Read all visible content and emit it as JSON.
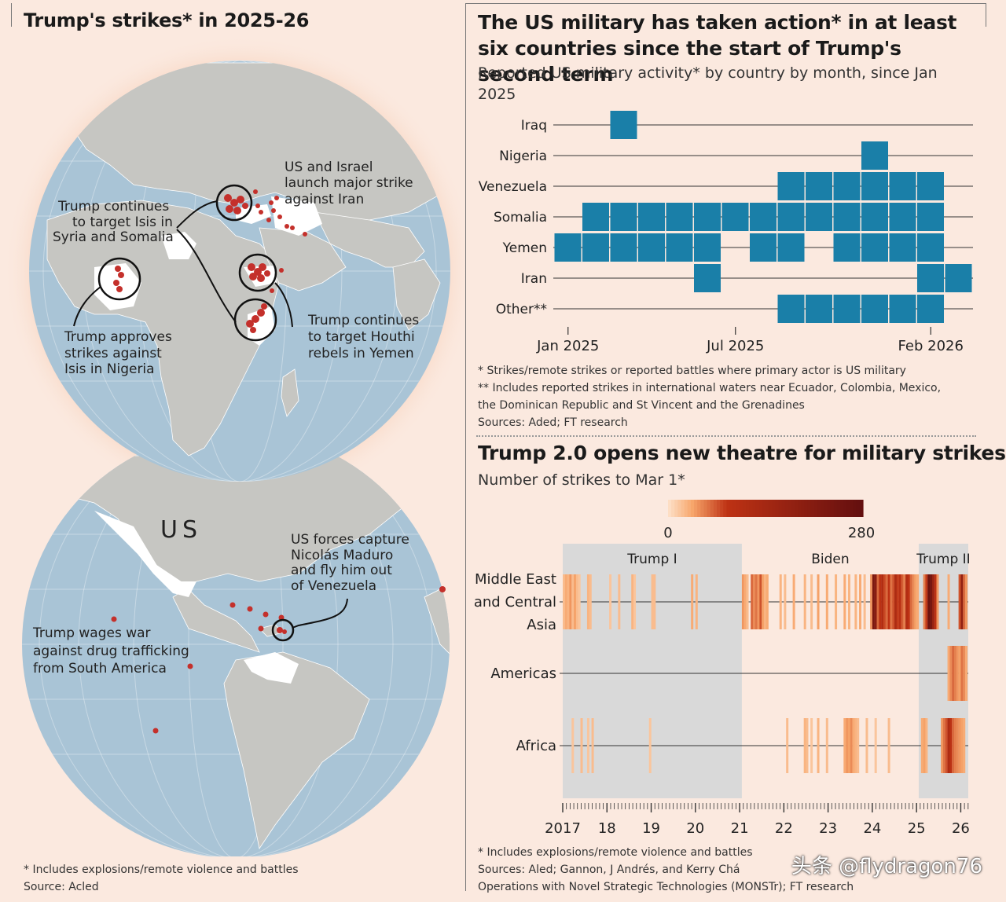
{
  "left": {
    "title": "Trump's strikes* in 2025-26",
    "annotations": {
      "isis_syria_1": "Trump continues",
      "isis_syria_2": "to target Isis in",
      "isis_syria_3": "Syria and Somalia",
      "iran_1": "US and Israel",
      "iran_2": "launch major strike",
      "iran_3": "against Iran",
      "nigeria_1": "Trump approves",
      "nigeria_2": "strikes against",
      "nigeria_3": "Isis in Nigeria",
      "houthi_1": "Trump continues",
      "houthi_2": "to target Houthi",
      "houthi_3": "rebels in Yemen",
      "us_label": "US",
      "maduro_1": "US forces capture",
      "maduro_2": "Nicolás Maduro",
      "maduro_3": "and fly him out",
      "maduro_4": "of Venezuela",
      "drug_1": "Trump wages war",
      "drug_2": "against drug trafficking",
      "drug_3": "from South America"
    },
    "footnote": "* Includes explosions/remote violence and battles",
    "source": "Source: Acled"
  },
  "top_right": {
    "title": "The US military has taken action* in at least six countries since the start of Trump's second term",
    "subtitle": "Reported US military activity* by country by month, since Jan 2025",
    "footnote1": "* Strikes/remote strikes or reported battles where primary actor is US military",
    "footnote2": "** Includes reported strikes in international waters near Ecuador, Colombia, Mexico,",
    "footnote3": "the Dominican Republic and St Vincent and the Grenadines",
    "source": "Sources: Aded; FT research"
  },
  "bottom_right": {
    "title": "Trump 2.0 opens new theatre for military strikes",
    "subtitle": "Number of strikes to Mar 1*",
    "footnote1": "* Includes explosions/remote violence and battles",
    "footnote2": "Sources: Aled; Gannon, J Andrés, and Kerry Chá",
    "footnote3": "Operations with Novel Strategic Technologies (MONSTr); FT research"
  },
  "watermark": "头条 @flydragon76",
  "colors": {
    "background": "#fbe9df",
    "ocean": "#a9c4d6",
    "land": "#c6c6c2",
    "highlight_land": "#ffffff",
    "strike_dot": "#c4302b",
    "bar_blue": "#1a7fa8",
    "era_shade": "#d9d9d9",
    "heat_low": "#fcd9bd",
    "heat_high": "#6b1010"
  },
  "chart_data": [
    {
      "type": "heatmap",
      "title": "The US military has taken action* in at least six countries since the start of Trump's second term",
      "subtitle": "Reported US military activity* by country by month, since Jan 2025",
      "months": [
        "Jan 2025",
        "Feb 2025",
        "Mar 2025",
        "Apr 2025",
        "May 2025",
        "Jun 2025",
        "Jul 2025",
        "Aug 2025",
        "Sep 2025",
        "Oct 2025",
        "Nov 2025",
        "Dec 2025",
        "Jan 2026",
        "Feb 2026",
        "Mar 2026"
      ],
      "x_tick_labels": [
        {
          "label": "Jan 2025",
          "month_index": 0.5
        },
        {
          "label": "Jul 2025",
          "month_index": 6.5
        },
        {
          "label": "Feb 2026",
          "month_index": 13.5
        }
      ],
      "rows": [
        {
          "name": "Iraq",
          "active": [
            0,
            0,
            1,
            0,
            0,
            0,
            0,
            0,
            0,
            0,
            0,
            0,
            0,
            0,
            0
          ]
        },
        {
          "name": "Nigeria",
          "active": [
            0,
            0,
            0,
            0,
            0,
            0,
            0,
            0,
            0,
            0,
            0,
            1,
            0,
            0,
            0
          ]
        },
        {
          "name": "Venezuela",
          "active": [
            0,
            0,
            0,
            0,
            0,
            0,
            0,
            0,
            1,
            1,
            1,
            1,
            1,
            1,
            0
          ]
        },
        {
          "name": "Somalia",
          "active": [
            0,
            1,
            1,
            1,
            1,
            1,
            1,
            1,
            1,
            1,
            1,
            1,
            1,
            1,
            0
          ]
        },
        {
          "name": "Yemen",
          "active": [
            1,
            1,
            1,
            1,
            1,
            1,
            0,
            1,
            1,
            0,
            1,
            1,
            1,
            1,
            0
          ]
        },
        {
          "name": "Iran",
          "active": [
            0,
            0,
            0,
            0,
            0,
            1,
            0,
            0,
            0,
            0,
            0,
            0,
            0,
            1,
            1
          ]
        },
        {
          "name": "Other**",
          "active": [
            0,
            0,
            0,
            0,
            0,
            0,
            0,
            0,
            1,
            1,
            1,
            1,
            1,
            1,
            0
          ]
        }
      ]
    },
    {
      "type": "heatmap",
      "title": "Trump 2.0 opens new theatre for military strikes",
      "subtitle": "Number of strikes to Mar 1*",
      "colorbar": {
        "min": 0,
        "max": 280,
        "min_label": "0",
        "max_label": "280"
      },
      "x_range": [
        2017,
        2026.17
      ],
      "x_tick_labels": [
        "2017",
        "18",
        "19",
        "20",
        "21",
        "22",
        "23",
        "24",
        "25",
        "26"
      ],
      "eras": [
        {
          "label": "Trump I",
          "start": 2017.0,
          "end": 2021.05
        },
        {
          "label": "Biden",
          "start": 2021.05,
          "end": 2025.05
        },
        {
          "label": "Trump II",
          "start": 2025.05,
          "end": 2026.17
        }
      ],
      "regions": [
        {
          "name": "Middle East and Central Asia",
          "label_lines": [
            "Middle East",
            "and Central",
            "Asia"
          ],
          "events": [
            [
              2017.0,
              20
            ],
            [
              2017.05,
              30
            ],
            [
              2017.1,
              25
            ],
            [
              2017.15,
              40
            ],
            [
              2017.2,
              20
            ],
            [
              2017.25,
              35
            ],
            [
              2017.3,
              20
            ],
            [
              2017.35,
              15
            ],
            [
              2017.55,
              25
            ],
            [
              2017.6,
              20
            ],
            [
              2018.05,
              15
            ],
            [
              2018.25,
              20
            ],
            [
              2018.55,
              25
            ],
            [
              2018.6,
              15
            ],
            [
              2019.0,
              20
            ],
            [
              2019.05,
              20
            ],
            [
              2019.9,
              30
            ],
            [
              2020.0,
              25
            ],
            [
              2021.05,
              40
            ],
            [
              2021.1,
              30
            ],
            [
              2021.15,
              20
            ],
            [
              2021.25,
              60
            ],
            [
              2021.3,
              45
            ],
            [
              2021.35,
              55
            ],
            [
              2021.4,
              40
            ],
            [
              2021.45,
              70
            ],
            [
              2021.5,
              35
            ],
            [
              2021.55,
              25
            ],
            [
              2021.6,
              30
            ],
            [
              2021.9,
              25
            ],
            [
              2022.0,
              20
            ],
            [
              2022.2,
              30
            ],
            [
              2022.45,
              25
            ],
            [
              2022.6,
              20
            ],
            [
              2022.75,
              35
            ],
            [
              2022.95,
              30
            ],
            [
              2023.15,
              25
            ],
            [
              2023.35,
              30
            ],
            [
              2023.45,
              25
            ],
            [
              2023.6,
              25
            ],
            [
              2023.7,
              30
            ],
            [
              2023.8,
              20
            ],
            [
              2023.95,
              40
            ],
            [
              2024.0,
              230
            ],
            [
              2024.05,
              200
            ],
            [
              2024.1,
              60
            ],
            [
              2024.15,
              90
            ],
            [
              2024.2,
              110
            ],
            [
              2024.25,
              75
            ],
            [
              2024.3,
              60
            ],
            [
              2024.35,
              85
            ],
            [
              2024.4,
              55
            ],
            [
              2024.45,
              70
            ],
            [
              2024.5,
              120
            ],
            [
              2024.55,
              80
            ],
            [
              2024.6,
              95
            ],
            [
              2024.65,
              65
            ],
            [
              2024.7,
              50
            ],
            [
              2024.75,
              110
            ],
            [
              2024.8,
              85
            ],
            [
              2024.85,
              60
            ],
            [
              2024.9,
              45
            ],
            [
              2024.95,
              35
            ],
            [
              2025.0,
              30
            ],
            [
              2025.15,
              50
            ],
            [
              2025.2,
              80
            ],
            [
              2025.25,
              260
            ],
            [
              2025.3,
              240
            ],
            [
              2025.35,
              170
            ],
            [
              2025.4,
              90
            ],
            [
              2025.45,
              40
            ],
            [
              2025.7,
              30
            ],
            [
              2025.95,
              70
            ],
            [
              2026.0,
              180
            ],
            [
              2026.05,
              60
            ],
            [
              2026.1,
              40
            ]
          ]
        },
        {
          "name": "Americas",
          "label_lines": [
            "Americas"
          ],
          "events": [
            [
              2025.7,
              30
            ],
            [
              2025.75,
              45
            ],
            [
              2025.8,
              60
            ],
            [
              2025.85,
              50
            ],
            [
              2025.9,
              40
            ],
            [
              2025.95,
              35
            ],
            [
              2026.0,
              55
            ],
            [
              2026.05,
              45
            ],
            [
              2026.1,
              30
            ]
          ]
        },
        {
          "name": "Africa",
          "label_lines": [
            "Africa"
          ],
          "events": [
            [
              2017.2,
              15
            ],
            [
              2017.4,
              20
            ],
            [
              2017.55,
              15
            ],
            [
              2017.65,
              20
            ],
            [
              2018.95,
              15
            ],
            [
              2022.05,
              20
            ],
            [
              2022.45,
              25
            ],
            [
              2022.5,
              20
            ],
            [
              2022.6,
              15
            ],
            [
              2022.75,
              25
            ],
            [
              2022.95,
              20
            ],
            [
              2023.35,
              30
            ],
            [
              2023.4,
              40
            ],
            [
              2023.45,
              35
            ],
            [
              2023.5,
              45
            ],
            [
              2023.55,
              30
            ],
            [
              2023.6,
              25
            ],
            [
              2023.65,
              20
            ],
            [
              2023.85,
              20
            ],
            [
              2024.05,
              15
            ],
            [
              2024.35,
              20
            ],
            [
              2025.1,
              30
            ],
            [
              2025.15,
              35
            ],
            [
              2025.2,
              25
            ],
            [
              2025.55,
              40
            ],
            [
              2025.6,
              55
            ],
            [
              2025.65,
              70
            ],
            [
              2025.7,
              120
            ],
            [
              2025.75,
              90
            ],
            [
              2025.8,
              60
            ],
            [
              2025.85,
              50
            ],
            [
              2025.9,
              45
            ],
            [
              2025.95,
              40
            ],
            [
              2026.0,
              35
            ],
            [
              2026.05,
              30
            ]
          ]
        }
      ]
    }
  ]
}
